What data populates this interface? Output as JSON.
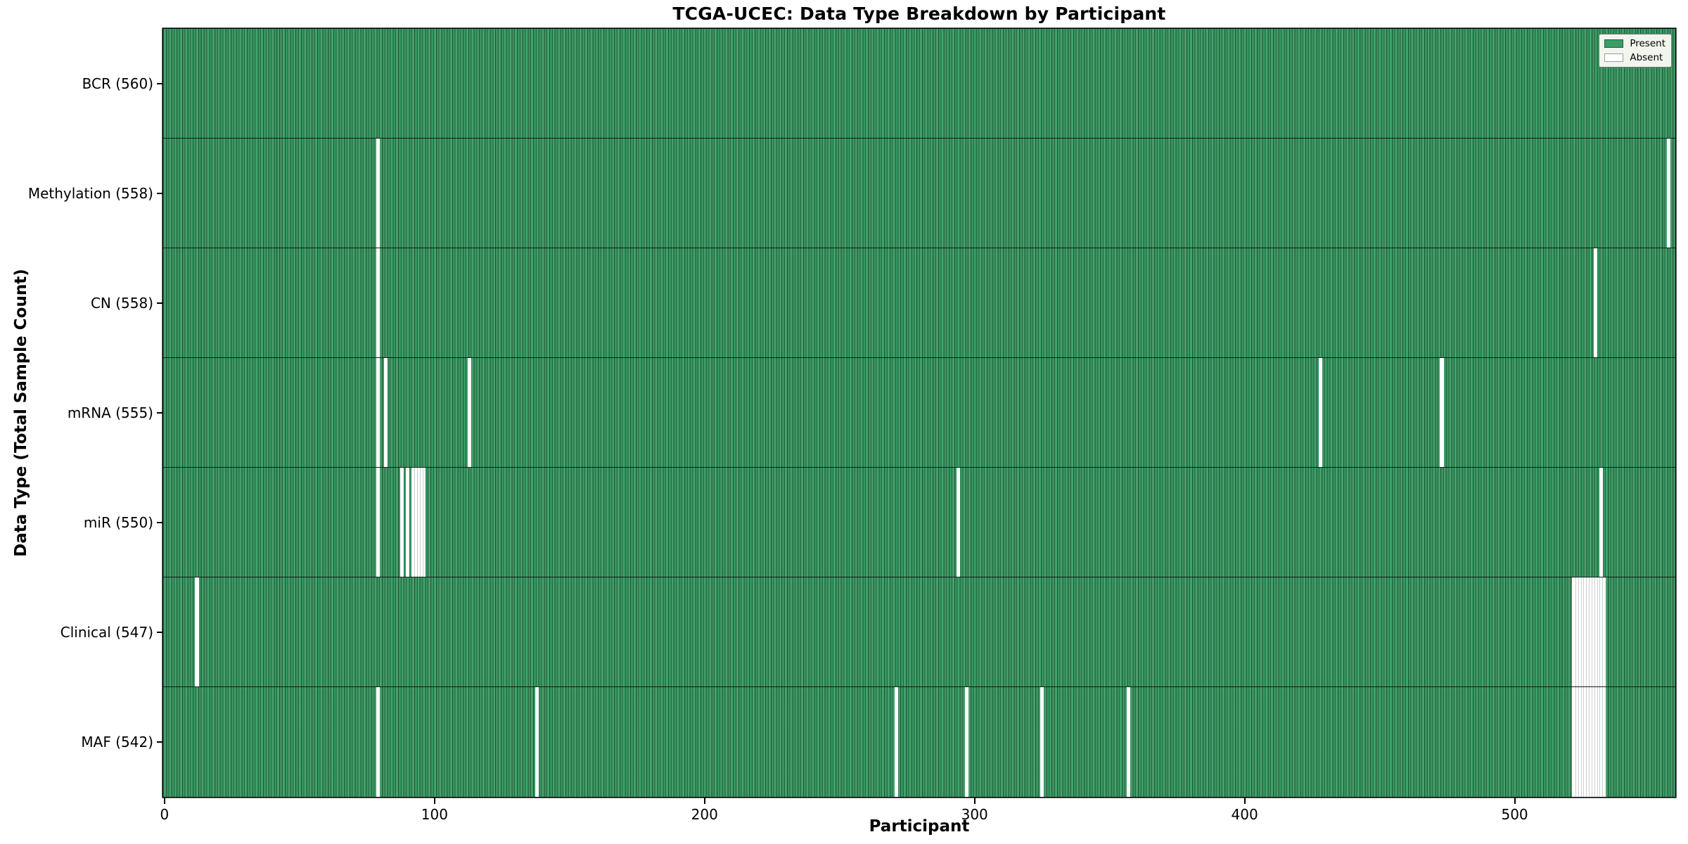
{
  "title": "TCGA-UCEC: Data Type Breakdown by Participant",
  "chart_data": {
    "type": "heatmap",
    "title": "TCGA-UCEC: Data Type Breakdown by Participant",
    "xlabel": "Participant",
    "ylabel": "Data Type (Total Sample Count)",
    "x_ticks": [
      0,
      100,
      200,
      300,
      400,
      500
    ],
    "x_axis_range": [
      0,
      560
    ],
    "n_participants": 560,
    "grid": false,
    "legend_position": "upper right",
    "legend": [
      {
        "label": "Present",
        "color": "#3b9c65"
      },
      {
        "label": "Absent",
        "color": "#ffffff"
      }
    ],
    "rows": [
      {
        "label": "BCR",
        "present_count": 560,
        "display": "BCR (560)",
        "absent_participants": []
      },
      {
        "label": "Methylation",
        "present_count": 558,
        "display": "Methylation (558)",
        "absent_participants": [
          79,
          557
        ]
      },
      {
        "label": "CN",
        "present_count": 558,
        "display": "CN (558)",
        "absent_participants": [
          79,
          530
        ]
      },
      {
        "label": "mRNA",
        "present_count": 555,
        "display": "mRNA (555)",
        "absent_participants": [
          79,
          82,
          113,
          428,
          473
        ]
      },
      {
        "label": "miR",
        "present_count": 550,
        "display": "miR (550)",
        "absent_participants": [
          79,
          88,
          90,
          92,
          93,
          94,
          95,
          96,
          294,
          532
        ]
      },
      {
        "label": "Clinical",
        "present_count": 547,
        "display": "Clinical (547)",
        "absent_participants": [
          12,
          522,
          523,
          524,
          525,
          526,
          527,
          528,
          529,
          530,
          531,
          532,
          533
        ]
      },
      {
        "label": "MAF",
        "present_count": 542,
        "display": "MAF (542)",
        "absent_participants": [
          79,
          138,
          271,
          297,
          325,
          357,
          522,
          523,
          524,
          525,
          526,
          527,
          528,
          529,
          530,
          531,
          532,
          533
        ]
      }
    ]
  },
  "colors": {
    "present_fill": "#3b9c65",
    "present_fill_alt": "#359560",
    "cell_border": "#1c5c36",
    "absent_fill": "#ffffff",
    "absent_separator": "#c9c9c9",
    "row_divider": "#0a0a0a",
    "plot_border": "#000000",
    "legend_bg": "#f2f4ee",
    "legend_border": "#777777",
    "text": "#000000"
  }
}
